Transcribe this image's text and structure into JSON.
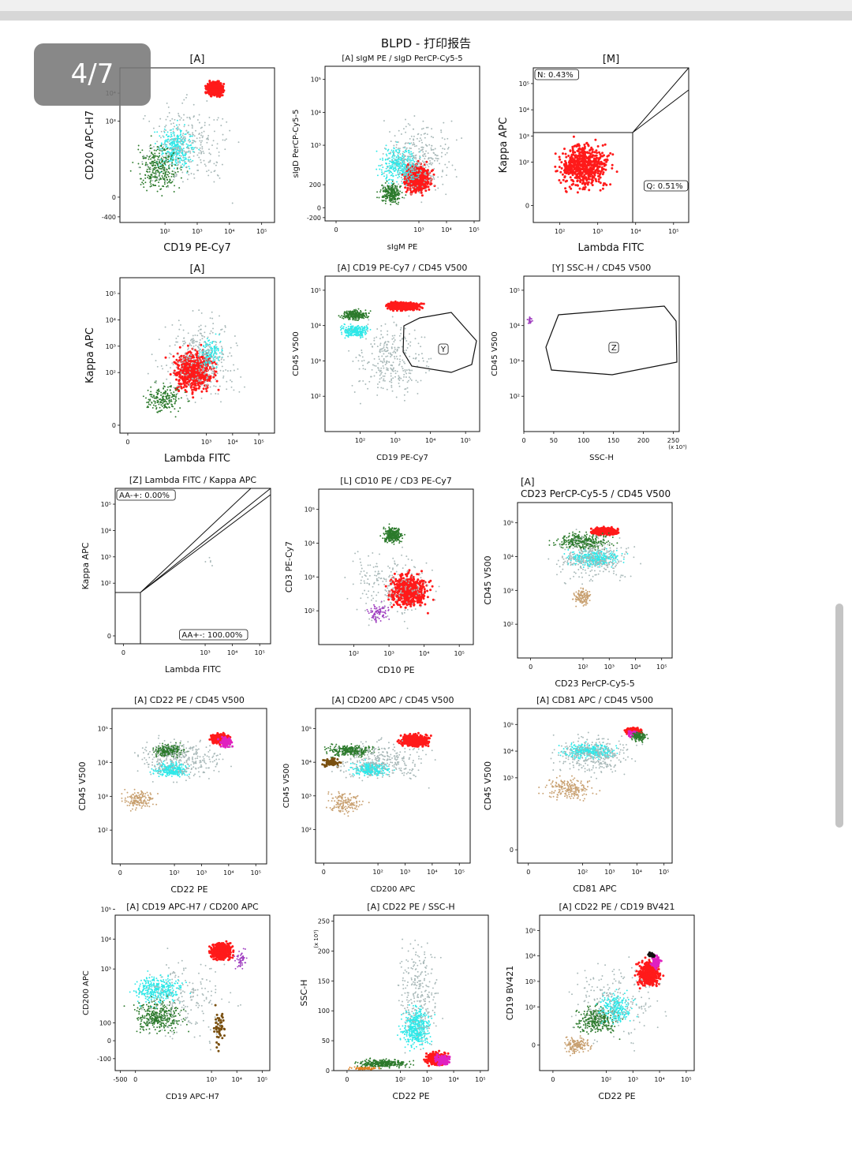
{
  "page_title": "BLPD - 打印报告",
  "page_counter": "4/7",
  "colors": {
    "red": "#ff1a1a",
    "cyan": "#2ee8e8",
    "green": "#2c7a2c",
    "grey": "#a8b8b8",
    "tan": "#c8a070",
    "purple": "#a040c0",
    "magenta": "#e020c0",
    "brown": "#7a5010",
    "black": "#111111",
    "orange": "#e08020"
  },
  "chart_data": [
    {
      "type": "scatter",
      "title": "[A]",
      "xlabel": "CD19 PE-Cy7",
      "ylabel": "CD20 APC-H7",
      "x_ticks": [
        "10²",
        "10³",
        "10⁴",
        "10⁵"
      ],
      "y_ticks": [
        "-400",
        "0",
        "10³",
        "10⁴"
      ],
      "populations": [
        {
          "color": "red",
          "x": [
            3.2,
            3.9
          ],
          "y": [
            3.8,
            4.5
          ],
          "n": 600
        },
        {
          "color": "cyan",
          "x": [
            1.5,
            3.2
          ],
          "y": [
            1.0,
            3.1
          ],
          "n": 350
        },
        {
          "color": "green",
          "x": [
            0.8,
            2.8
          ],
          "y": [
            0.1,
            2.6
          ],
          "n": 300
        },
        {
          "color": "grey",
          "x": [
            0.7,
            4.6
          ],
          "y": [
            0.0,
            4.4
          ],
          "n": 300
        }
      ],
      "gates": []
    },
    {
      "type": "scatter",
      "title": "[A] sIgM PE / sIgD PerCP-Cy5-5",
      "xlabel": "sIgM PE",
      "ylabel": "sIgD PerCP-Cy5-5",
      "x_ticks": [
        "0",
        "10³",
        "10⁴",
        "10⁵"
      ],
      "y_ticks": [
        "-200",
        "0",
        "200",
        "10³",
        "10⁴",
        "10⁵"
      ],
      "populations": [
        {
          "color": "red",
          "x": [
            2.3,
            3.6
          ],
          "y": [
            1.4,
            2.6
          ],
          "n": 600
        },
        {
          "color": "cyan",
          "x": [
            1.3,
            3.3
          ],
          "y": [
            1.6,
            3.2
          ],
          "n": 350
        },
        {
          "color": "green",
          "x": [
            1.4,
            2.6
          ],
          "y": [
            1.1,
            2.0
          ],
          "n": 250
        },
        {
          "color": "grey",
          "x": [
            1.2,
            4.8
          ],
          "y": [
            1.0,
            4.2
          ],
          "n": 300
        }
      ],
      "gates": []
    },
    {
      "type": "scatter",
      "title": "[M]",
      "xlabel": "Lambda FITC",
      "ylabel": "Kappa APC",
      "x_ticks": [
        "10²",
        "10³",
        "10⁴",
        "10⁵"
      ],
      "y_ticks": [
        "0",
        "10²",
        "10³",
        "10⁴",
        "10⁵"
      ],
      "populations": [
        {
          "color": "red",
          "x": [
            1.7,
            3.6
          ],
          "y": [
            0.6,
            3.1
          ],
          "n": 600
        }
      ],
      "gates": [
        {
          "label": "N: 0.43%"
        },
        {
          "label": "Q: 0.51%"
        }
      ]
    },
    {
      "type": "scatter",
      "title": "[A]",
      "xlabel": "Lambda FITC",
      "ylabel": "Kappa APC",
      "x_ticks": [
        "0",
        "10³",
        "10⁴",
        "10⁵"
      ],
      "y_ticks": [
        "0",
        "10²",
        "10³",
        "10⁴",
        "10⁵"
      ],
      "populations": [
        {
          "color": "red",
          "x": [
            1.4,
            3.7
          ],
          "y": [
            0.9,
            3.2
          ],
          "n": 550
        },
        {
          "color": "cyan",
          "x": [
            2.5,
            3.8
          ],
          "y": [
            2.0,
            3.5
          ],
          "n": 150
        },
        {
          "color": "green",
          "x": [
            0.3,
            2.5
          ],
          "y": [
            0.2,
            1.8
          ],
          "n": 200
        },
        {
          "color": "grey",
          "x": [
            0.5,
            5.1
          ],
          "y": [
            0.3,
            4.9
          ],
          "n": 300
        }
      ],
      "gates": []
    },
    {
      "type": "scatter",
      "title": "[A] CD19 PE-Cy7 / CD45 V500",
      "xlabel": "CD19 PE-Cy7",
      "ylabel": "CD45 V500",
      "x_ticks": [
        "10²",
        "10³",
        "10⁴",
        "10⁵"
      ],
      "y_ticks": [
        "10²",
        "10³",
        "10⁴",
        "10⁵"
      ],
      "populations": [
        {
          "color": "red",
          "x": [
            2.6,
            3.9
          ],
          "y": [
            4.4,
            4.7
          ],
          "n": 550
        },
        {
          "color": "green",
          "x": [
            1.3,
            2.4
          ],
          "y": [
            4.1,
            4.5
          ],
          "n": 250
        },
        {
          "color": "cyan",
          "x": [
            1.3,
            2.4
          ],
          "y": [
            3.6,
            4.1
          ],
          "n": 250
        },
        {
          "color": "grey",
          "x": [
            1.3,
            4.5
          ],
          "y": [
            1.5,
            4.6
          ],
          "n": 300
        }
      ],
      "gates": [
        {
          "label": "Y"
        }
      ]
    },
    {
      "type": "scatter",
      "title": "[Y] SSC-H / CD45 V500",
      "xlabel": "SSC-H",
      "ylabel": "CD45 V500",
      "x_ticks": [
        "0",
        "50",
        "100",
        "150",
        "200",
        "250"
      ],
      "y_ticks": [
        "10²",
        "10³",
        "10⁴",
        "10⁵"
      ],
      "x_multiplier": "(x 10³)",
      "populations": [
        {
          "color": "purple",
          "x": [
            5,
            15
          ],
          "y": [
            4.0,
            4.3
          ],
          "n": 25
        }
      ],
      "gates": [
        {
          "label": "Z"
        }
      ]
    },
    {
      "type": "scatter",
      "title": "[Z] Lambda FITC / Kappa APC",
      "xlabel": "Lambda FITC",
      "ylabel": "Kappa APC",
      "x_ticks": [
        "0",
        "10³",
        "10⁴",
        "10⁵"
      ],
      "y_ticks": [
        "0",
        "10²",
        "10³",
        "10⁴",
        "10⁵"
      ],
      "populations": [
        {
          "color": "grey",
          "x": [
            2.6,
            3.9
          ],
          "y": [
            2.5,
            3.2
          ],
          "n": 5
        }
      ],
      "gates": [
        {
          "label": "AA-+: 0.00%"
        },
        {
          "label": "AA+-: 100.00%"
        }
      ]
    },
    {
      "type": "scatter",
      "title": "[L] CD10 PE / CD3 PE-Cy7",
      "xlabel": "CD10 PE",
      "ylabel": "CD3 PE-Cy7",
      "x_ticks": [
        "10²",
        "10³",
        "10⁴",
        "10⁵"
      ],
      "y_ticks": [
        "10²",
        "10³",
        "10⁴",
        "10⁵"
      ],
      "populations": [
        {
          "color": "green",
          "x": [
            2.7,
            3.5
          ],
          "y": [
            3.9,
            4.6
          ],
          "n": 300
        },
        {
          "color": "red",
          "x": [
            2.8,
            4.3
          ],
          "y": [
            1.9,
            3.3
          ],
          "n": 550
        },
        {
          "color": "purple",
          "x": [
            2.2,
            3.2
          ],
          "y": [
            1.5,
            2.4
          ],
          "n": 80
        },
        {
          "color": "grey",
          "x": [
            1.3,
            4.8
          ],
          "y": [
            1.3,
            4.3
          ],
          "n": 200
        }
      ],
      "gates": []
    },
    {
      "type": "scatter",
      "title": "[A]\nCD23 PerCP-Cy5-5 / CD45 V500",
      "xlabel": "CD23 PerCP-Cy5-5",
      "ylabel": "CD45 V500",
      "x_ticks": [
        "0",
        "10²",
        "10³",
        "10⁴",
        "10⁵"
      ],
      "y_ticks": [
        "10²",
        "10³",
        "10⁴",
        "10⁵"
      ],
      "populations": [
        {
          "color": "red",
          "x": [
            2.2,
            3.5
          ],
          "y": [
            4.6,
            4.9
          ],
          "n": 450
        },
        {
          "color": "green",
          "x": [
            0.5,
            3.5
          ],
          "y": [
            4.1,
            4.8
          ],
          "n": 300
        },
        {
          "color": "cyan",
          "x": [
            1.0,
            3.9
          ],
          "y": [
            3.6,
            4.3
          ],
          "n": 350
        },
        {
          "color": "tan",
          "x": [
            1.5,
            2.5
          ],
          "y": [
            2.4,
            3.2
          ],
          "n": 120
        },
        {
          "color": "grey",
          "x": [
            0.3,
            4.4
          ],
          "y": [
            3.0,
            4.9
          ],
          "n": 300
        }
      ],
      "gates": []
    },
    {
      "type": "scatter",
      "title": "[A] CD22 PE / CD45 V500",
      "xlabel": "CD22 PE",
      "ylabel": "CD45 V500",
      "x_ticks": [
        "0",
        "10²",
        "10³",
        "10⁴",
        "10⁵"
      ],
      "y_ticks": [
        "10²",
        "10³",
        "10⁴",
        "10⁵"
      ],
      "populations": [
        {
          "color": "red",
          "x": [
            3.2,
            4.2
          ],
          "y": [
            4.5,
            4.9
          ],
          "n": 450
        },
        {
          "color": "magenta",
          "x": [
            3.6,
            4.2
          ],
          "y": [
            4.4,
            4.8
          ],
          "n": 100
        },
        {
          "color": "green",
          "x": [
            1.0,
            2.6
          ],
          "y": [
            4.1,
            4.6
          ],
          "n": 300
        },
        {
          "color": "cyan",
          "x": [
            1.0,
            2.8
          ],
          "y": [
            3.5,
            4.1
          ],
          "n": 300
        },
        {
          "color": "tan",
          "x": [
            -0.2,
            1.5
          ],
          "y": [
            2.5,
            3.3
          ],
          "n": 150
        },
        {
          "color": "grey",
          "x": [
            0.0,
            4.6
          ],
          "y": [
            3.3,
            4.9
          ],
          "n": 300
        }
      ],
      "gates": []
    },
    {
      "type": "scatter",
      "title": "[A] CD200 APC / CD45 V500",
      "xlabel": "CD200 APC",
      "ylabel": "CD45 V500",
      "x_ticks": [
        "0",
        "10²",
        "10³",
        "10⁴",
        "10⁵"
      ],
      "y_ticks": [
        "10²",
        "10³",
        "10⁴",
        "10⁵"
      ],
      "populations": [
        {
          "color": "red",
          "x": [
            2.6,
            4.1
          ],
          "y": [
            4.4,
            4.9
          ],
          "n": 450
        },
        {
          "color": "green",
          "x": [
            -0.3,
            2.3
          ],
          "y": [
            4.1,
            4.6
          ],
          "n": 300
        },
        {
          "color": "cyan",
          "x": [
            0.8,
            2.7
          ],
          "y": [
            3.5,
            4.1
          ],
          "n": 300
        },
        {
          "color": "brown",
          "x": [
            -0.3,
            0.8
          ],
          "y": [
            3.8,
            4.2
          ],
          "n": 60
        },
        {
          "color": "tan",
          "x": [
            -0.2,
            1.8
          ],
          "y": [
            2.3,
            3.3
          ],
          "n": 150
        },
        {
          "color": "grey",
          "x": [
            -0.3,
            4.5
          ],
          "y": [
            3.2,
            4.9
          ],
          "n": 300
        }
      ],
      "gates": []
    },
    {
      "type": "scatter",
      "title": "[A] CD81 APC / CD45 V500",
      "xlabel": "CD81 APC",
      "ylabel": "CD45 V500",
      "x_ticks": [
        "0",
        "10²",
        "10³",
        "10⁴",
        "10⁵"
      ],
      "y_ticks": [
        "0",
        "10³",
        "10⁴",
        "10⁵"
      ],
      "populations": [
        {
          "color": "red",
          "x": [
            3.5,
            4.2
          ],
          "y": [
            4.6,
            4.9
          ],
          "n": 350
        },
        {
          "color": "magenta",
          "x": [
            3.6,
            4.1
          ],
          "y": [
            4.5,
            4.8
          ],
          "n": 80
        },
        {
          "color": "green",
          "x": [
            3.7,
            4.5
          ],
          "y": [
            4.3,
            4.8
          ],
          "n": 150
        },
        {
          "color": "cyan",
          "x": [
            0.9,
            3.6
          ],
          "y": [
            3.6,
            4.4
          ],
          "n": 350
        },
        {
          "color": "tan",
          "x": [
            0.2,
            2.8
          ],
          "y": [
            2.0,
            3.2
          ],
          "n": 200
        },
        {
          "color": "grey",
          "x": [
            0.3,
            4.5
          ],
          "y": [
            2.8,
            4.9
          ],
          "n": 300
        }
      ],
      "gates": []
    },
    {
      "type": "scatter",
      "title": "[A] CD19 APC-H7 / CD200 APC",
      "xlabel": "CD19 APC-H7",
      "ylabel": "CD200 APC",
      "x_ticks": [
        "-500",
        "0",
        "10³",
        "10⁴",
        "10⁵"
      ],
      "y_ticks": [
        "-100",
        "0",
        "100",
        "10³",
        "10⁴",
        "10⁵"
      ],
      "populations": [
        {
          "color": "red",
          "x": [
            2.8,
            4.0
          ],
          "y": [
            3.2,
            4.0
          ],
          "n": 450
        },
        {
          "color": "cyan",
          "x": [
            -0.5,
            2.3
          ],
          "y": [
            1.6,
            3.0
          ],
          "n": 350
        },
        {
          "color": "green",
          "x": [
            -0.5,
            2.4
          ],
          "y": [
            0.6,
            2.2
          ],
          "n": 350
        },
        {
          "color": "brown",
          "x": [
            3.0,
            3.6
          ],
          "y": [
            0.0,
            2.0
          ],
          "n": 50
        },
        {
          "color": "purple",
          "x": [
            3.8,
            4.5
          ],
          "y": [
            2.9,
            3.7
          ],
          "n": 50
        },
        {
          "color": "grey",
          "x": [
            -0.5,
            4.5
          ],
          "y": [
            0.0,
            4.0
          ],
          "n": 200
        }
      ],
      "gates": []
    },
    {
      "type": "scatter",
      "title": "[A] CD22 PE / SSC-H",
      "xlabel": "CD22 PE",
      "ylabel": "SSC-H",
      "x_ticks": [
        "0",
        "10²",
        "10³",
        "10⁴",
        "10⁵"
      ],
      "y_ticks": [
        "0",
        "50",
        "100",
        "150",
        "200",
        "250"
      ],
      "y_multiplier": "(x 10³)",
      "populations": [
        {
          "color": "cyan",
          "x": [
            1.8,
            3.4
          ],
          "y": [
            25,
            120
          ],
          "n": 450
        },
        {
          "color": "grey",
          "x": [
            1.6,
            3.8
          ],
          "y": [
            10,
            250
          ],
          "n": 250
        },
        {
          "color": "green",
          "x": [
            0.0,
            2.8
          ],
          "y": [
            2,
            22
          ],
          "n": 300
        },
        {
          "color": "red",
          "x": [
            2.8,
            3.9
          ],
          "y": [
            5,
            35
          ],
          "n": 300
        },
        {
          "color": "magenta",
          "x": [
            3.2,
            4.0
          ],
          "y": [
            5,
            30
          ],
          "n": 120
        },
        {
          "color": "orange",
          "x": [
            -0.2,
            1.5
          ],
          "y": [
            0,
            8
          ],
          "n": 80
        }
      ],
      "gates": []
    },
    {
      "type": "scatter",
      "title": "[A] CD22 PE / CD19 BV421",
      "xlabel": "CD22 PE",
      "ylabel": "CD19 BV421",
      "x_ticks": [
        "0",
        "10²",
        "10³",
        "10⁴",
        "10⁵"
      ],
      "y_ticks": [
        "0",
        "10²",
        "10³",
        "10⁴",
        "10⁵"
      ],
      "populations": [
        {
          "color": "red",
          "x": [
            3.0,
            4.2
          ],
          "y": [
            2.6,
            4.0
          ],
          "n": 450
        },
        {
          "color": "magenta",
          "x": [
            3.6,
            4.1
          ],
          "y": [
            3.4,
            4.2
          ],
          "n": 100
        },
        {
          "color": "green",
          "x": [
            0.5,
            2.8
          ],
          "y": [
            0.7,
            2.3
          ],
          "n": 300
        },
        {
          "color": "cyan",
          "x": [
            1.5,
            3.2
          ],
          "y": [
            1.1,
            2.8
          ],
          "n": 250
        },
        {
          "color": "tan",
          "x": [
            0.2,
            1.6
          ],
          "y": [
            0.0,
            1.0
          ],
          "n": 150
        },
        {
          "color": "black",
          "x": [
            3.5,
            3.9
          ],
          "y": [
            3.9,
            4.2
          ],
          "n": 30
        },
        {
          "color": "grey",
          "x": [
            0.0,
            4.8
          ],
          "y": [
            0.0,
            4.6
          ],
          "n": 200
        }
      ],
      "gates": []
    }
  ]
}
